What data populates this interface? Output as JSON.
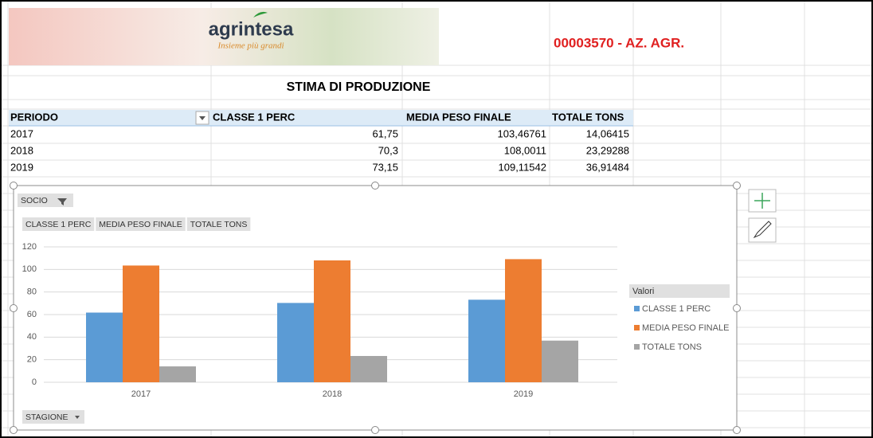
{
  "header": {
    "logo": "agrintesa",
    "slogan": "Insieme più grandi",
    "code": "00003570 - AZ. AGR.",
    "title": "STIMA DI PRODUZIONE"
  },
  "table": {
    "columns": [
      "PERIODO",
      "CLASSE 1 PERC",
      "MEDIA PESO FINALE",
      "TOTALE TONS"
    ],
    "rows": [
      [
        "2017",
        "61,75",
        "103,46761",
        "14,06415"
      ],
      [
        "2018",
        "70,3",
        "108,0011",
        "23,29288"
      ],
      [
        "2019",
        "73,15",
        "109,11542",
        "36,91484"
      ]
    ]
  },
  "chart_data": {
    "type": "bar",
    "filter_field": "SOCIO",
    "value_fields": [
      "CLASSE 1 PERC",
      "MEDIA PESO FINALE",
      "TOTALE TONS"
    ],
    "axis_field": "STAGIONE",
    "legend_title": "Valori",
    "categories": [
      "2017",
      "2018",
      "2019"
    ],
    "series": [
      {
        "name": "CLASSE 1 PERC",
        "color": "#5b9bd5",
        "values": [
          61.75,
          70.3,
          73.15
        ]
      },
      {
        "name": "MEDIA PESO FINALE",
        "color": "#ed7d31",
        "values": [
          103.46761,
          108.0011,
          109.11542
        ]
      },
      {
        "name": "TOTALE TONS",
        "color": "#a5a5a5",
        "values": [
          14.06415,
          23.29288,
          36.91484
        ]
      }
    ],
    "ylim": [
      0,
      120
    ],
    "yticks": [
      0,
      20,
      40,
      60,
      80,
      100,
      120
    ],
    "grid": true,
    "legend": "right"
  }
}
